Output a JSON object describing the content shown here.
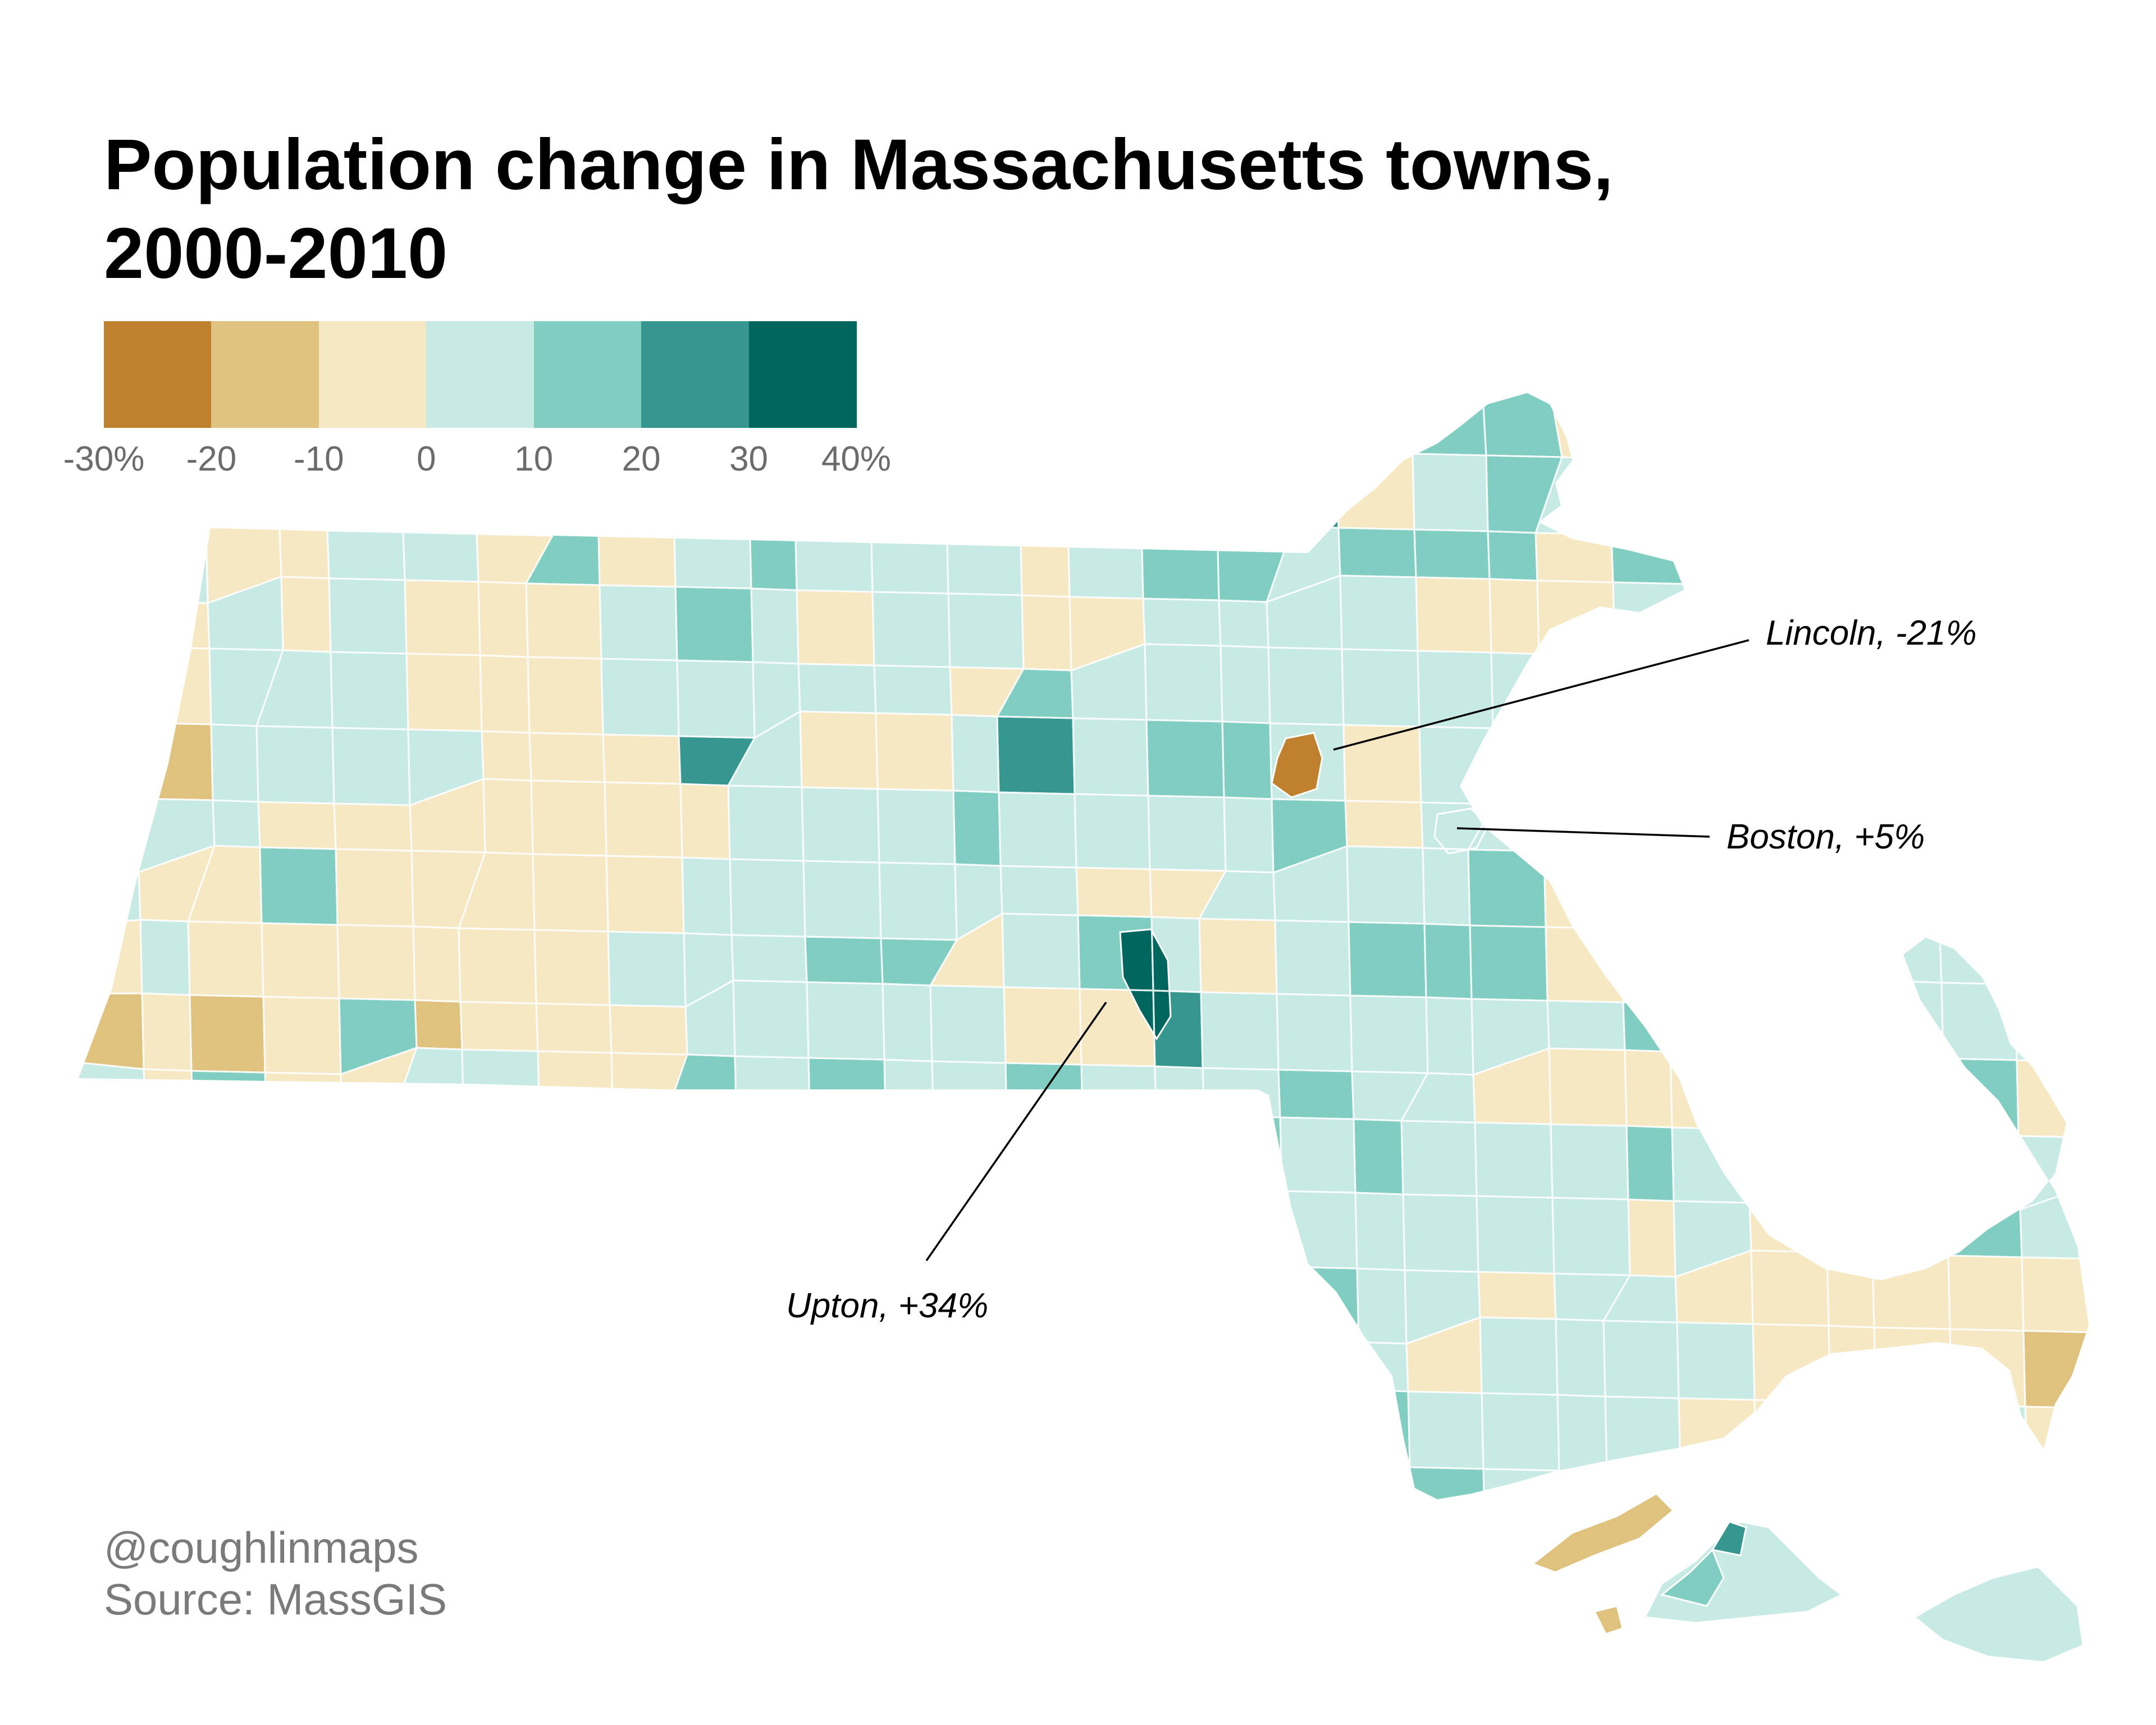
{
  "title_lines": [
    "Population change in Massachusetts towns,",
    "2000-2010"
  ],
  "legend": {
    "classes": [
      {
        "range": [
          -30,
          -20
        ],
        "color": "#bf812d"
      },
      {
        "range": [
          -20,
          -10
        ],
        "color": "#dfc27d"
      },
      {
        "range": [
          -10,
          0
        ],
        "color": "#f6e8c3"
      },
      {
        "range": [
          0,
          10
        ],
        "color": "#c7eae5"
      },
      {
        "range": [
          10,
          20
        ],
        "color": "#80cdc1"
      },
      {
        "range": [
          20,
          30
        ],
        "color": "#35978f"
      },
      {
        "range": [
          30,
          40
        ],
        "color": "#01665e"
      }
    ],
    "tick_labels": [
      "-30%",
      "-20",
      "-10",
      "0",
      "10",
      "20",
      "30",
      "40%"
    ]
  },
  "annotations": {
    "lincoln": {
      "label": "Lincoln, -21%",
      "value": -21
    },
    "boston": {
      "label": "Boston, +5%",
      "value": 5
    },
    "upton": {
      "label": "Upton, +34%",
      "value": 34
    }
  },
  "credits": {
    "handle": "@coughlinmaps",
    "source": "Source: MassGIS"
  }
}
